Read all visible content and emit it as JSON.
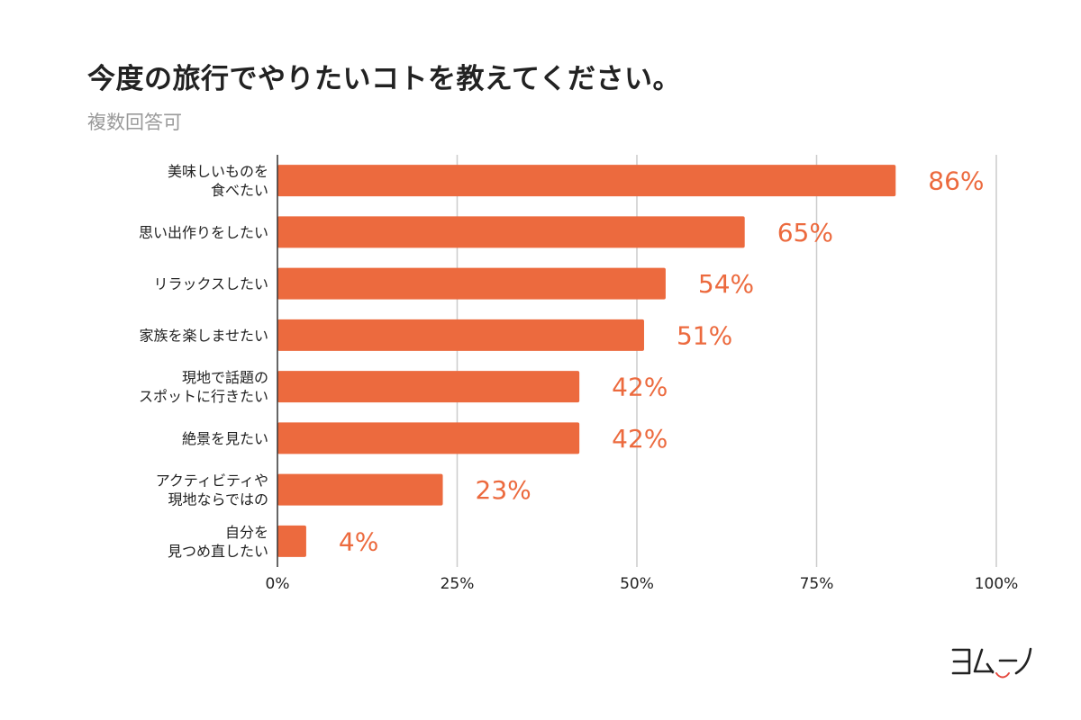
{
  "chart_data": {
    "type": "bar",
    "orientation": "horizontal",
    "title": "今度の旅行でやりたいコトを教えてください。",
    "subtitle": "複数回答可",
    "categories": [
      "美味しいものを\n食べたい",
      "思い出作りをしたい",
      "リラックスしたい",
      "家族を楽しませたい",
      "現地で話題の\nスポットに行きたい",
      "絶景を見たい",
      "アクティビティや\n現地ならではの",
      "自分を\n見つめ直したい"
    ],
    "values": [
      86,
      65,
      54,
      51,
      42,
      42,
      23,
      4
    ],
    "value_labels": [
      "86%",
      "65%",
      "54%",
      "51%",
      "42%",
      "42%",
      "23%",
      "4%"
    ],
    "xlim": [
      0,
      100
    ],
    "x_ticks": [
      0,
      25,
      50,
      75,
      100
    ],
    "x_tick_labels": [
      "0%",
      "25%",
      "50%",
      "75%",
      "100%"
    ],
    "grid": true,
    "colors": {
      "bar": "#ec6a3e",
      "label": "#ec6a3e",
      "grid": "#cccccc",
      "axis": "#333333"
    }
  },
  "logo": {
    "name": "yomuno-logo",
    "text": "ヨムーノ",
    "color": "#222222",
    "accent": "#e5493f"
  }
}
